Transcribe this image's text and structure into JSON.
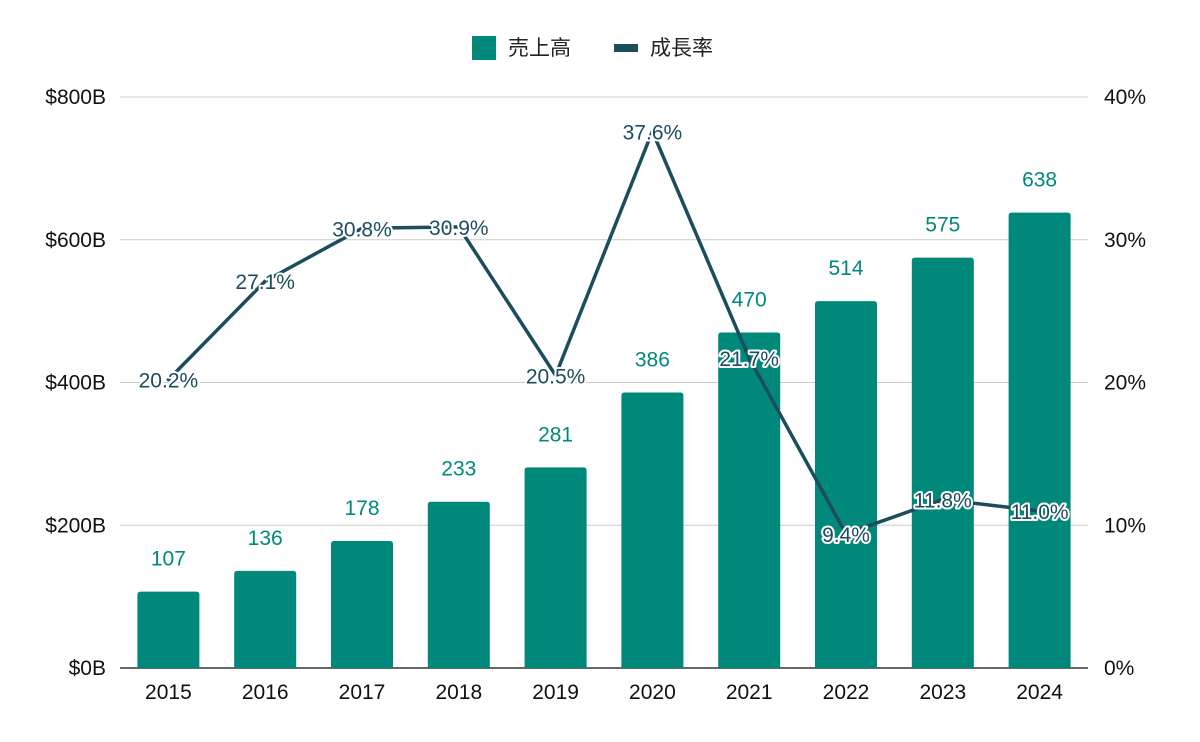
{
  "chart_data": {
    "type": "bar",
    "categories": [
      "2015",
      "2016",
      "2017",
      "2018",
      "2019",
      "2020",
      "2021",
      "2022",
      "2023",
      "2024"
    ],
    "series": [
      {
        "name": "売上高",
        "type": "bar",
        "axis": "left",
        "color": "#00897b",
        "values": [
          107,
          136,
          178,
          233,
          281,
          386,
          470,
          514,
          575,
          638
        ]
      },
      {
        "name": "成長率",
        "type": "line",
        "axis": "right",
        "color": "#1b4d5c",
        "values": [
          20.2,
          27.1,
          30.8,
          30.9,
          20.5,
          37.6,
          21.7,
          9.4,
          11.8,
          11.0
        ],
        "labels": [
          "20.2%",
          "27.1%",
          "30.8%",
          "30.9%",
          "20.5%",
          "37.6%",
          "21.7%",
          "9.4%",
          "11.8%",
          "11.0%"
        ]
      }
    ],
    "y_left": {
      "range": [
        0,
        800
      ],
      "ticks": [
        "$0B",
        "$200B",
        "$400B",
        "$600B",
        "$800B"
      ]
    },
    "y_right": {
      "range": [
        0,
        40
      ],
      "ticks": [
        "0%",
        "10%",
        "20%",
        "30%",
        "40%"
      ]
    },
    "grid": true,
    "legend": "top-center"
  }
}
